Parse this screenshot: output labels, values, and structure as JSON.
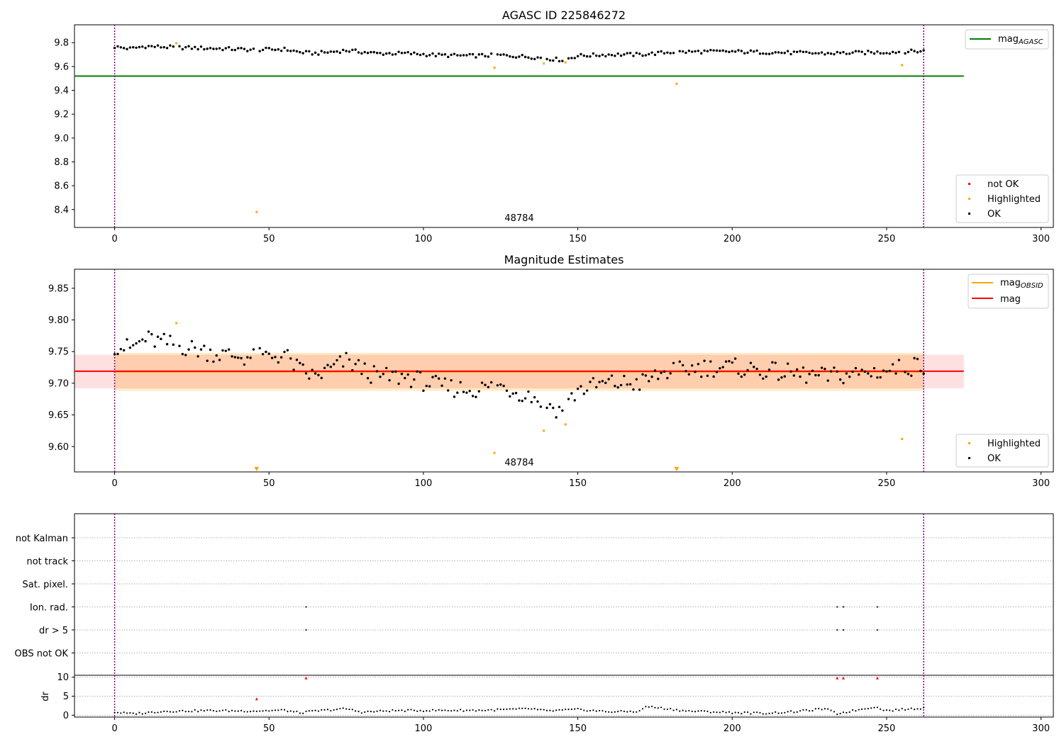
{
  "chart_data": [
    {
      "type": "scatter",
      "title": "AGASC ID 225846272",
      "annotation": "48784",
      "xlim": [
        -13,
        304
      ],
      "ylim": [
        8.25,
        9.95
      ],
      "xticks": [
        0,
        50,
        100,
        150,
        200,
        250,
        300
      ],
      "yticks": [
        8.4,
        8.6,
        8.8,
        9.0,
        9.2,
        9.4,
        9.6,
        9.8
      ],
      "vlines": [
        0,
        262
      ],
      "hlines": [
        {
          "name": "mag_AGASC",
          "label_base": "mag",
          "label_sub": "AGASC",
          "y": 9.52,
          "x_range": [
            -13,
            275
          ],
          "color": "#008000"
        }
      ],
      "legend_lines": [
        "mag_AGASC"
      ],
      "legend_points": [
        "not OK",
        "Highlighted",
        "OK"
      ],
      "series": [
        {
          "name": "not OK",
          "color": "#ff0000",
          "points": []
        },
        {
          "name": "Highlighted",
          "color": "#ffa500",
          "points": [
            [
              20,
              9.795
            ],
            [
              46,
              8.38
            ],
            [
              123,
              9.59
            ],
            [
              139,
              9.625
            ],
            [
              146,
              9.635
            ],
            [
              182,
              9.455
            ],
            [
              255,
              9.612
            ]
          ]
        },
        {
          "name": "OK",
          "color": "#000000",
          "ok_x_range": [
            0,
            262
          ],
          "exclude_x": [
            20,
            46,
            123,
            139,
            146,
            182,
            255
          ]
        }
      ],
      "ok_profile": [
        [
          0,
          9.765
        ],
        [
          5,
          9.75
        ],
        [
          10,
          9.77
        ],
        [
          20,
          9.76
        ],
        [
          35,
          9.75
        ],
        [
          45,
          9.74
        ],
        [
          55,
          9.745
        ],
        [
          60,
          9.72
        ],
        [
          65,
          9.71
        ],
        [
          75,
          9.735
        ],
        [
          85,
          9.71
        ],
        [
          95,
          9.71
        ],
        [
          105,
          9.695
        ],
        [
          115,
          9.69
        ],
        [
          125,
          9.695
        ],
        [
          135,
          9.68
        ],
        [
          145,
          9.655
        ],
        [
          150,
          9.69
        ],
        [
          160,
          9.7
        ],
        [
          170,
          9.7
        ],
        [
          180,
          9.72
        ],
        [
          190,
          9.725
        ],
        [
          200,
          9.725
        ],
        [
          210,
          9.72
        ],
        [
          220,
          9.715
        ],
        [
          230,
          9.71
        ],
        [
          240,
          9.715
        ],
        [
          250,
          9.72
        ],
        [
          262,
          9.73
        ]
      ]
    },
    {
      "type": "scatter",
      "title": "Magnitude Estimates",
      "annotation": "48784",
      "xlim": [
        -13,
        304
      ],
      "ylim": [
        9.56,
        9.88
      ],
      "xticks": [
        0,
        50,
        100,
        150,
        200,
        250,
        300
      ],
      "yticks": [
        9.6,
        9.65,
        9.7,
        9.75,
        9.8,
        9.85
      ],
      "vlines": [
        0,
        262
      ],
      "bands": [
        {
          "name": "mag_OBSID band",
          "x_range": [
            0,
            262
          ],
          "y_range": [
            9.688,
            9.748
          ],
          "color": "#ffa500"
        },
        {
          "name": "mag band",
          "x_range": [
            -13,
            275
          ],
          "y_range": [
            9.692,
            9.745
          ],
          "color": "#ff0000"
        }
      ],
      "hlines": [
        {
          "name": "mag_OBSID",
          "label_base": "mag",
          "label_sub": "OBSID",
          "y": 9.718,
          "x_range": [
            0,
            262
          ],
          "color": "#ffa500"
        },
        {
          "name": "mag",
          "label_base": "mag",
          "label_sub": "",
          "y": 9.719,
          "x_range": [
            -13,
            275
          ],
          "color": "#ff0000"
        }
      ],
      "legend_lines": [
        "mag_OBSID",
        "mag"
      ],
      "legend_points": [
        "Highlighted",
        "OK"
      ],
      "series": [
        {
          "name": "Highlighted",
          "color": "#ffa500",
          "points": [
            [
              20,
              9.795
            ],
            [
              123,
              9.59
            ],
            [
              139,
              9.625
            ],
            [
              146,
              9.635
            ],
            [
              255,
              9.612
            ]
          ],
          "offscale_markers": [
            46,
            182
          ]
        },
        {
          "name": "OK",
          "color": "#000000",
          "ok_x_range": [
            0,
            262
          ],
          "exclude_x": [
            20,
            46,
            123,
            139,
            146,
            182,
            255
          ]
        }
      ],
      "ok_profile": [
        [
          0,
          9.76
        ],
        [
          5,
          9.755
        ],
        [
          10,
          9.77
        ],
        [
          20,
          9.76
        ],
        [
          35,
          9.745
        ],
        [
          45,
          9.74
        ],
        [
          55,
          9.745
        ],
        [
          60,
          9.72
        ],
        [
          65,
          9.71
        ],
        [
          75,
          9.735
        ],
        [
          85,
          9.71
        ],
        [
          95,
          9.71
        ],
        [
          105,
          9.695
        ],
        [
          115,
          9.69
        ],
        [
          125,
          9.695
        ],
        [
          135,
          9.68
        ],
        [
          145,
          9.655
        ],
        [
          150,
          9.69
        ],
        [
          160,
          9.7
        ],
        [
          170,
          9.7
        ],
        [
          180,
          9.72
        ],
        [
          190,
          9.725
        ],
        [
          200,
          9.725
        ],
        [
          210,
          9.72
        ],
        [
          220,
          9.715
        ],
        [
          230,
          9.71
        ],
        [
          240,
          9.715
        ],
        [
          250,
          9.72
        ],
        [
          262,
          9.73
        ]
      ]
    },
    {
      "type": "scatter",
      "title": "",
      "xlim": [
        -13,
        304
      ],
      "xticks": [
        0,
        50,
        100,
        150,
        200,
        250,
        300
      ],
      "vlines": [
        0,
        262
      ],
      "flag_rows": [
        "not Kalman",
        "not track",
        "Sat. pixel.",
        "Ion. rad.",
        "dr > 5",
        "OBS not OK"
      ],
      "flag_points": [
        {
          "row": "Ion. rad.",
          "x": [
            62,
            234,
            236,
            247
          ]
        },
        {
          "row": "dr > 5",
          "x": [
            62,
            234,
            236,
            247
          ]
        }
      ]
    },
    {
      "type": "scatter",
      "title": "",
      "ylabel": "dr",
      "xlim": [
        -13,
        304
      ],
      "ylim": [
        -0.5,
        10.5
      ],
      "xticks": [
        0,
        50,
        100,
        150,
        200,
        250,
        300
      ],
      "yticks": [
        0,
        5,
        10
      ],
      "vlines": [
        0,
        262
      ],
      "red_markers": [
        [
          46,
          4.3
        ],
        [
          62,
          9.8
        ],
        [
          234,
          9.8
        ],
        [
          236,
          9.8
        ],
        [
          247,
          9.8
        ]
      ],
      "dr_profile": [
        [
          0,
          0.8
        ],
        [
          5,
          0.4
        ],
        [
          10,
          0.6
        ],
        [
          15,
          1.0
        ],
        [
          30,
          1.2
        ],
        [
          45,
          1.1
        ],
        [
          55,
          1.3
        ],
        [
          60,
          0.6
        ],
        [
          65,
          1.1
        ],
        [
          75,
          1.7
        ],
        [
          80,
          0.8
        ],
        [
          90,
          1.2
        ],
        [
          120,
          1.3
        ],
        [
          135,
          1.7
        ],
        [
          140,
          1.1
        ],
        [
          150,
          1.5
        ],
        [
          160,
          0.9
        ],
        [
          170,
          1.0
        ],
        [
          172,
          2.3
        ],
        [
          180,
          1.6
        ],
        [
          185,
          1.1
        ],
        [
          200,
          0.7
        ],
        [
          210,
          0.5
        ],
        [
          220,
          0.9
        ],
        [
          230,
          1.7
        ],
        [
          234,
          0.4
        ],
        [
          246,
          2.2
        ],
        [
          250,
          1.2
        ],
        [
          262,
          1.9
        ]
      ]
    }
  ]
}
